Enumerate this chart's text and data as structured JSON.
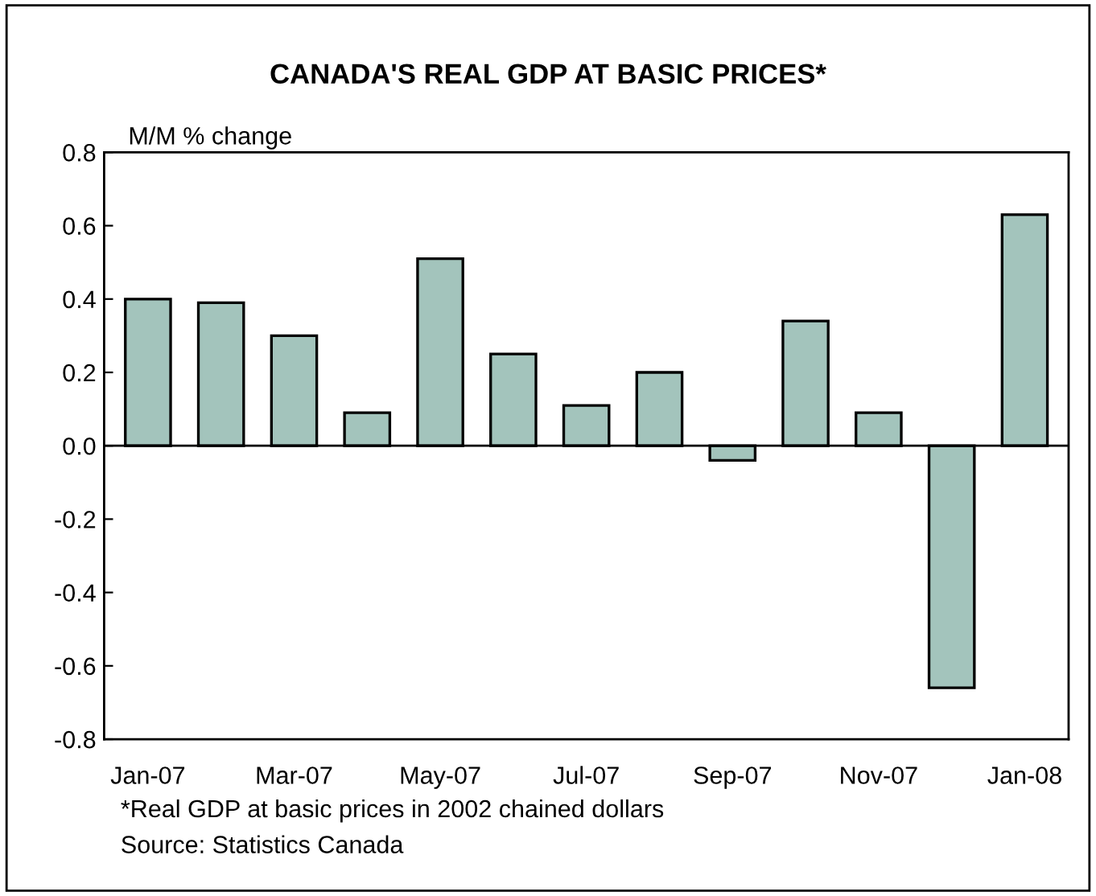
{
  "chart_data": {
    "type": "bar",
    "title": "CANADA'S REAL GDP AT BASIC PRICES*",
    "ylabel": "M/M % change",
    "categories": [
      "Jan-07",
      null,
      "Mar-07",
      null,
      "May-07",
      null,
      "Jul-07",
      null,
      "Sep-07",
      null,
      "Nov-07",
      null,
      "Jan-08"
    ],
    "values": [
      0.4,
      0.39,
      0.3,
      0.09,
      0.51,
      0.25,
      0.11,
      0.2,
      -0.04,
      0.34,
      0.09,
      -0.66,
      0.63
    ],
    "color": "#a3c4bc",
    "ylim": [
      -0.8,
      0.8
    ],
    "yticks": [
      {
        "value": 0.8,
        "label": "0.8"
      },
      {
        "value": 0.6,
        "label": "0.6"
      },
      {
        "value": 0.4,
        "label": "0.4"
      },
      {
        "value": 0.2,
        "label": "0.2"
      },
      {
        "value": 0,
        "label": "0.0"
      },
      {
        "value": -0.2,
        "label": "-0.2"
      },
      {
        "value": -0.4,
        "label": "-0.4"
      },
      {
        "value": -0.6,
        "label": "-0.6"
      },
      {
        "value": -0.8,
        "label": "-0.8"
      }
    ],
    "legend": false,
    "annotations": [
      "*Real GDP at basic prices in 2002 chained dollars",
      "Source: Statistics Canada"
    ]
  }
}
